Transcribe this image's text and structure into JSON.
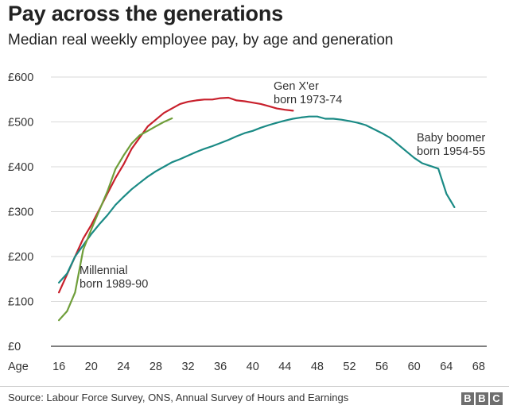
{
  "header": {
    "title": "Pay across the generations",
    "subtitle": "Median real weekly employee pay, by age and generation"
  },
  "footer": {
    "source": "Source: Labour Force Survey, ONS, Annual Survey of Hours and Earnings",
    "logo_letters": [
      "B",
      "B",
      "C"
    ]
  },
  "chart_data": {
    "type": "line",
    "xlabel": "Age",
    "ylabel": "",
    "xlim": [
      15,
      69
    ],
    "ylim": [
      0,
      600
    ],
    "x_ticks": [
      16,
      20,
      24,
      28,
      32,
      36,
      40,
      44,
      48,
      52,
      56,
      60,
      64,
      68
    ],
    "y_ticks": [
      0,
      100,
      200,
      300,
      400,
      500,
      600
    ],
    "y_tick_labels": [
      "£0",
      "£100",
      "£200",
      "£300",
      "£400",
      "£500",
      "£600"
    ],
    "grid": true,
    "legend": "none",
    "series": [
      {
        "name": "Gen X'er born 1973-74",
        "label_lines": [
          "Gen X'er",
          "born 1973-74"
        ],
        "color": "#c8202c",
        "points": [
          [
            16,
            120
          ],
          [
            17,
            160
          ],
          [
            18,
            200
          ],
          [
            19,
            240
          ],
          [
            20,
            270
          ],
          [
            21,
            305
          ],
          [
            22,
            340
          ],
          [
            23,
            375
          ],
          [
            24,
            405
          ],
          [
            25,
            440
          ],
          [
            26,
            465
          ],
          [
            27,
            490
          ],
          [
            28,
            505
          ],
          [
            29,
            520
          ],
          [
            30,
            530
          ],
          [
            31,
            540
          ],
          [
            32,
            545
          ],
          [
            33,
            548
          ],
          [
            34,
            550
          ],
          [
            35,
            550
          ],
          [
            36,
            553
          ],
          [
            37,
            554
          ],
          [
            38,
            548
          ],
          [
            39,
            546
          ],
          [
            40,
            543
          ],
          [
            41,
            540
          ],
          [
            42,
            535
          ],
          [
            43,
            530
          ],
          [
            44,
            527
          ],
          [
            45,
            525
          ]
        ]
      },
      {
        "name": "Baby boomer born 1954-55",
        "label_lines": [
          "Baby boomer",
          "born 1954-55"
        ],
        "color": "#1a8a85",
        "points": [
          [
            16,
            142
          ],
          [
            17,
            162
          ],
          [
            18,
            200
          ],
          [
            19,
            225
          ],
          [
            20,
            250
          ],
          [
            21,
            272
          ],
          [
            22,
            292
          ],
          [
            23,
            315
          ],
          [
            24,
            333
          ],
          [
            25,
            350
          ],
          [
            26,
            364
          ],
          [
            27,
            378
          ],
          [
            28,
            390
          ],
          [
            29,
            400
          ],
          [
            30,
            410
          ],
          [
            31,
            417
          ],
          [
            32,
            425
          ],
          [
            33,
            433
          ],
          [
            34,
            440
          ],
          [
            35,
            446
          ],
          [
            36,
            453
          ],
          [
            37,
            460
          ],
          [
            38,
            468
          ],
          [
            39,
            475
          ],
          [
            40,
            480
          ],
          [
            41,
            487
          ],
          [
            42,
            493
          ],
          [
            43,
            498
          ],
          [
            44,
            503
          ],
          [
            45,
            507
          ],
          [
            46,
            510
          ],
          [
            47,
            512
          ],
          [
            48,
            512
          ],
          [
            49,
            507
          ],
          [
            50,
            507
          ],
          [
            51,
            505
          ],
          [
            52,
            502
          ],
          [
            53,
            498
          ],
          [
            54,
            493
          ],
          [
            55,
            484
          ],
          [
            56,
            475
          ],
          [
            57,
            465
          ],
          [
            58,
            450
          ],
          [
            59,
            435
          ],
          [
            60,
            420
          ],
          [
            61,
            408
          ],
          [
            62,
            402
          ],
          [
            63,
            396
          ],
          [
            64,
            340
          ],
          [
            65,
            310
          ]
        ]
      },
      {
        "name": "Millennial born 1989-90",
        "label_lines": [
          "Millennial",
          "born 1989-90"
        ],
        "color": "#6f9e3a",
        "points": [
          [
            16,
            58
          ],
          [
            17,
            78
          ],
          [
            18,
            120
          ],
          [
            19,
            215
          ],
          [
            20,
            260
          ],
          [
            21,
            303
          ],
          [
            22,
            345
          ],
          [
            23,
            395
          ],
          [
            24,
            425
          ],
          [
            25,
            452
          ],
          [
            26,
            470
          ],
          [
            27,
            480
          ],
          [
            28,
            490
          ],
          [
            29,
            500
          ],
          [
            30,
            508
          ]
        ]
      }
    ]
  }
}
